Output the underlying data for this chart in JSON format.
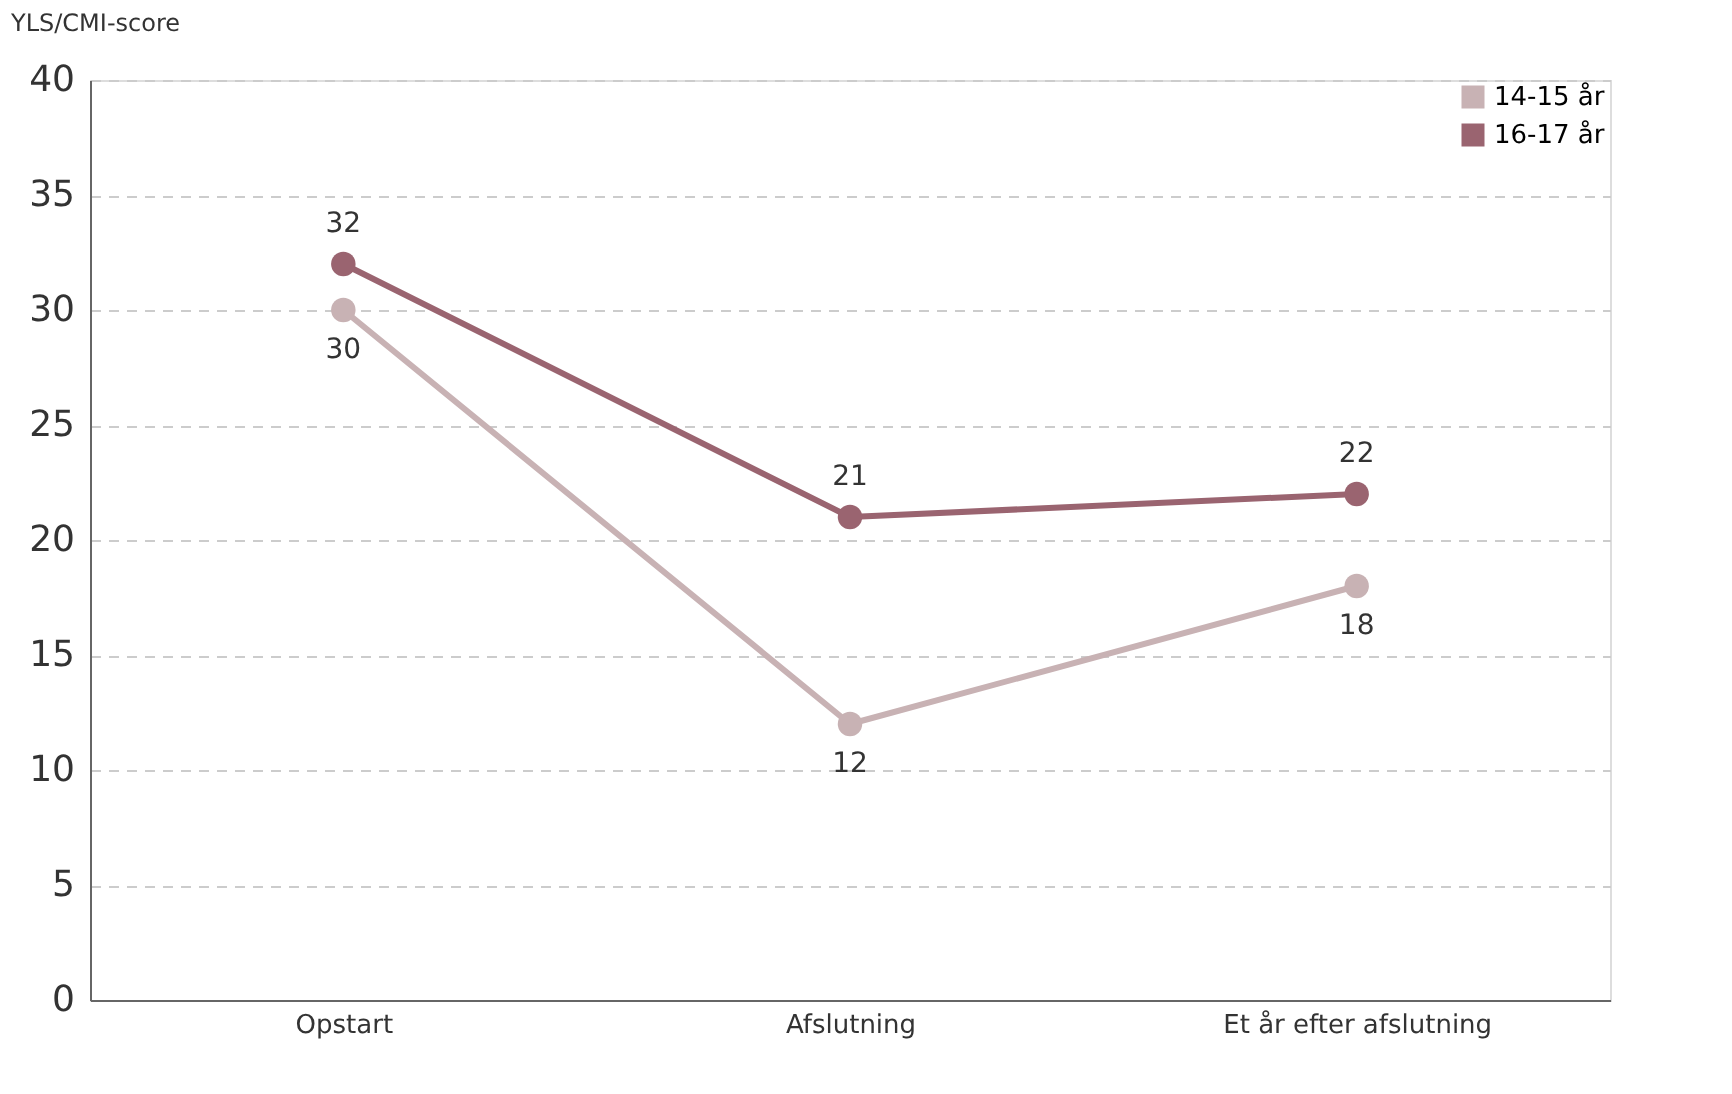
{
  "chart_data": {
    "type": "line",
    "ylabel": "YLS/CMI-score",
    "categories": [
      "Opstart",
      "Afslutning",
      "Et år efter afslutning"
    ],
    "series": [
      {
        "name": "14-15 år",
        "color": "#c8b2b4",
        "values": [
          30,
          12,
          18
        ]
      },
      {
        "name": "16-17 år",
        "color": "#9a6470",
        "values": [
          32,
          21,
          22
        ]
      }
    ],
    "ylim": [
      0,
      40
    ],
    "yticks": [
      0,
      5,
      10,
      15,
      20,
      25,
      30,
      35,
      40
    ],
    "grid": "y",
    "legend": "top right",
    "marker": "circle",
    "line_style": "solid",
    "data_labels": true
  }
}
